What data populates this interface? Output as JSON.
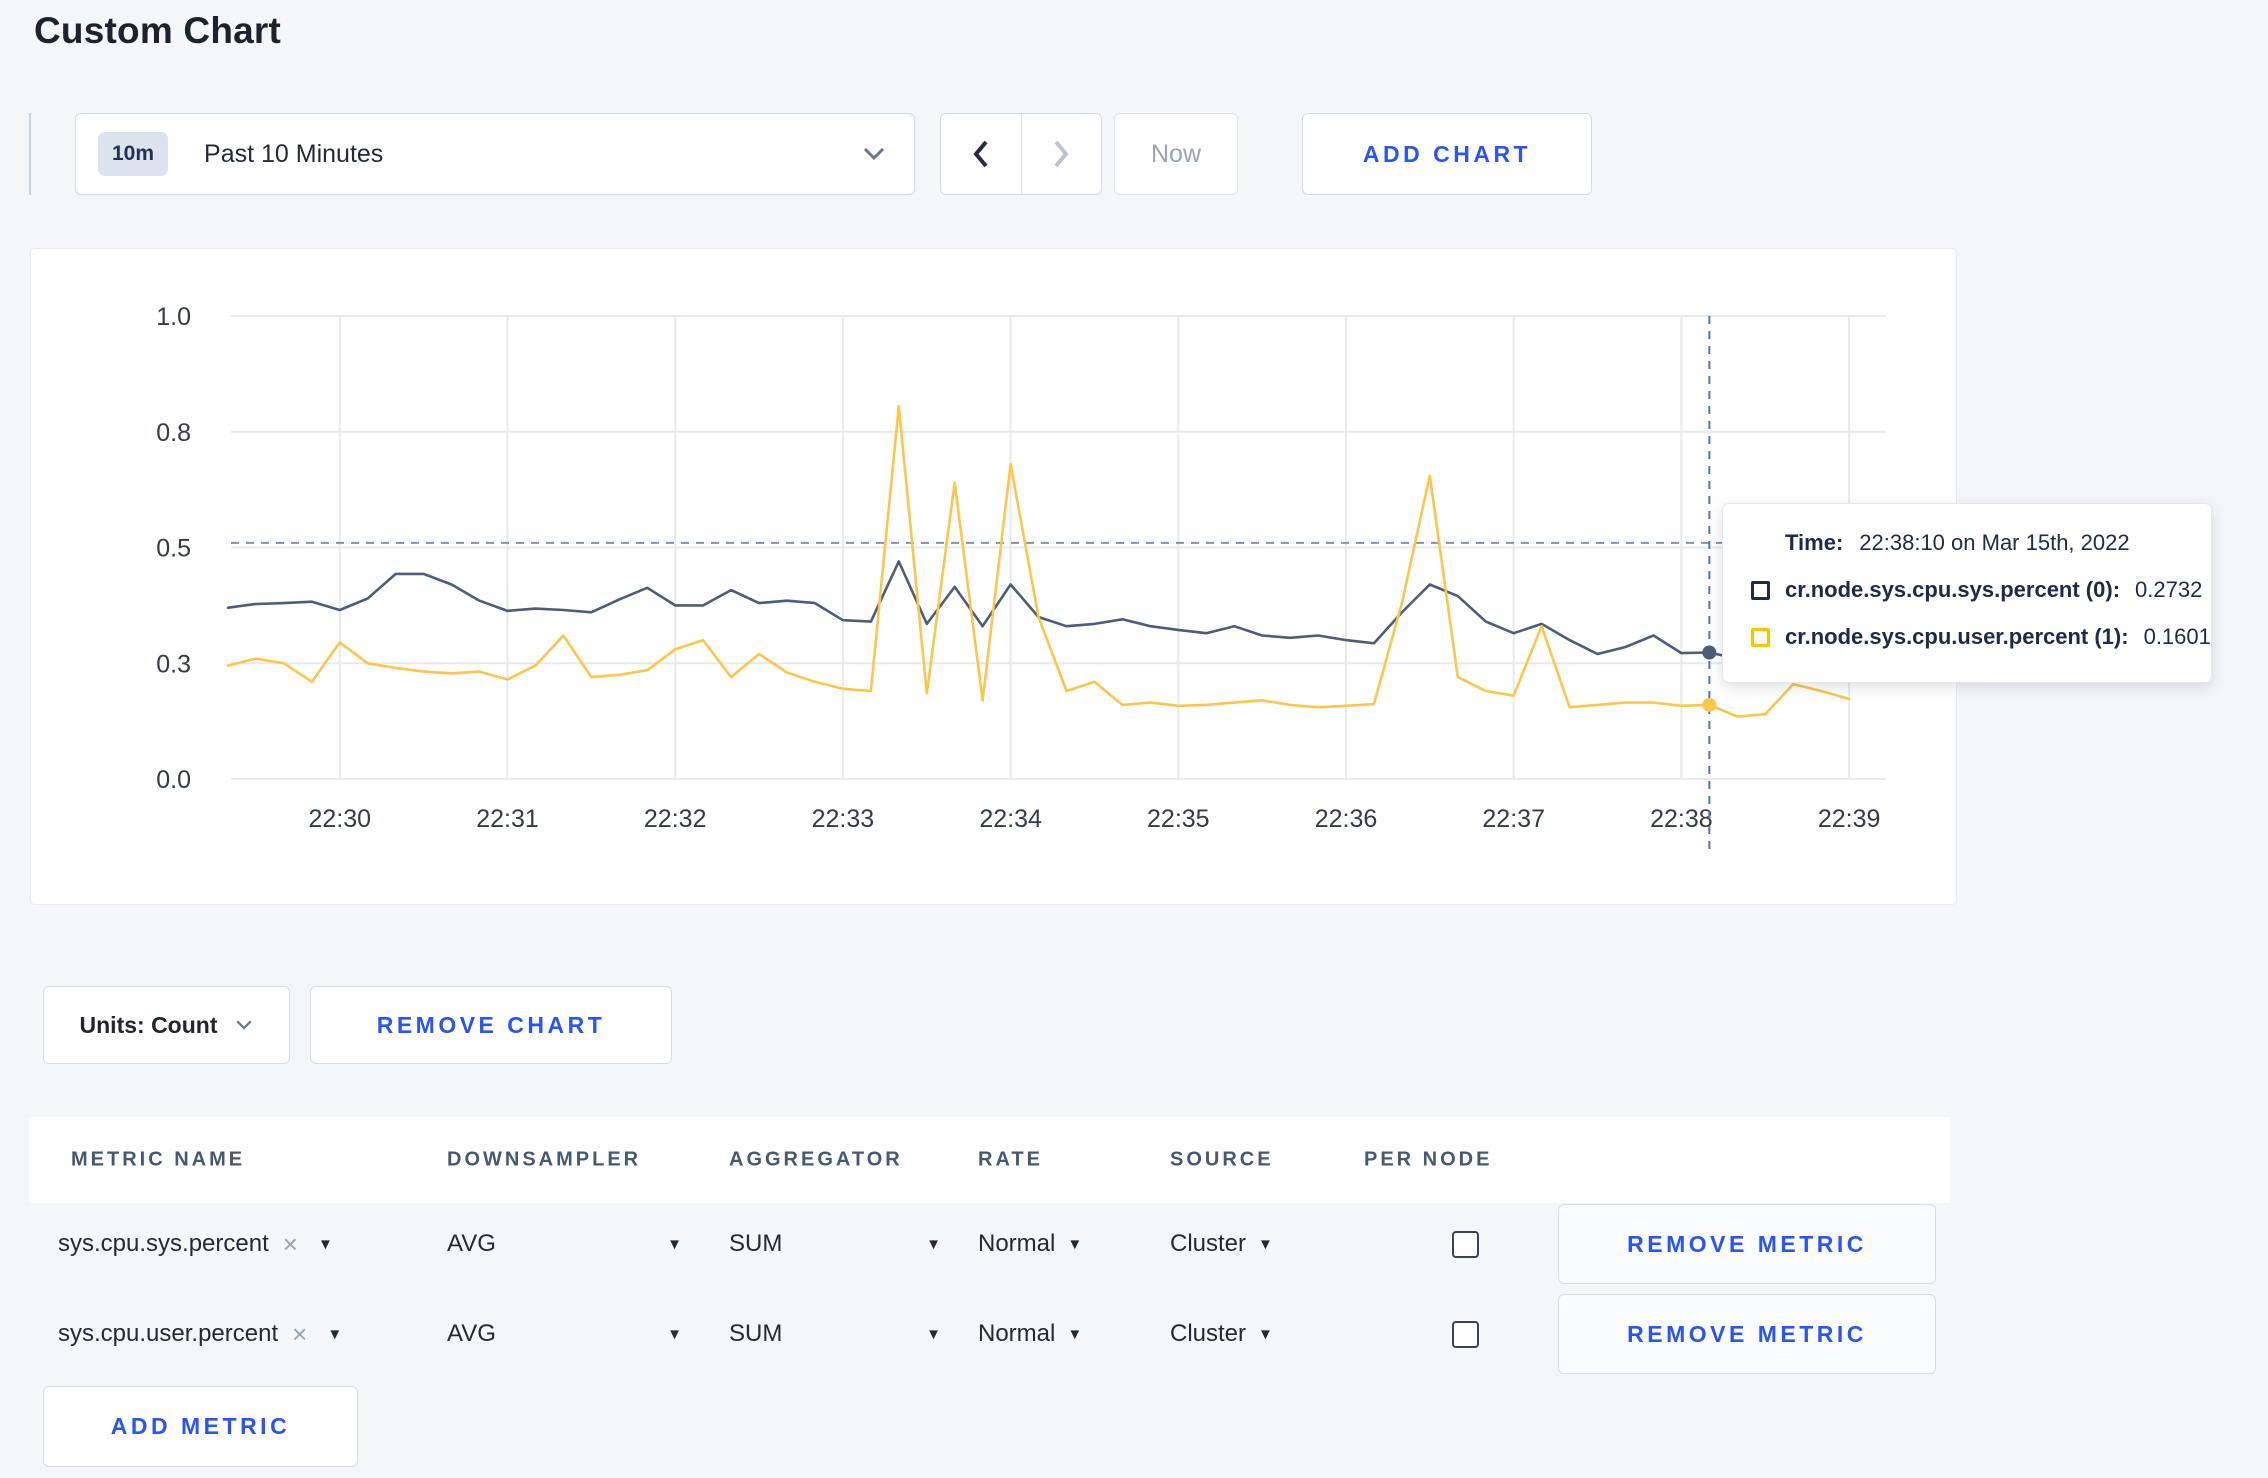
{
  "page": {
    "title": "Custom Chart"
  },
  "toolbar": {
    "time_window_badge": "10m",
    "time_window_label": "Past 10 Minutes",
    "now_label": "Now",
    "add_chart_label": "ADD CHART"
  },
  "chart_data": {
    "type": "line",
    "title": "",
    "xlabel": "",
    "ylabel": "",
    "ylim": [
      0,
      1
    ],
    "grid": true,
    "y_ticks": [
      {
        "value": 0.0,
        "label": "0.0"
      },
      {
        "value": 0.25,
        "label": "0.3"
      },
      {
        "value": 0.5,
        "label": "0.5"
      },
      {
        "value": 0.75,
        "label": "0.8"
      },
      {
        "value": 1.0,
        "label": "1.0"
      }
    ],
    "x_tick_labels": [
      "22:30",
      "22:31",
      "22:32",
      "22:33",
      "22:34",
      "22:35",
      "22:36",
      "22:37",
      "22:38",
      "22:39"
    ],
    "x_tick_indices": [
      4,
      10,
      16,
      22,
      28,
      34,
      40,
      46,
      52,
      58
    ],
    "point_interval_seconds": 10,
    "start_time": "22:29:20",
    "series": [
      {
        "name": "cr.node.sys.cpu.sys.percent",
        "color": "#4d5c7a",
        "values": [
          0.37,
          0.378,
          0.38,
          0.383,
          0.365,
          0.39,
          0.443,
          0.443,
          0.42,
          0.385,
          0.363,
          0.368,
          0.365,
          0.36,
          0.388,
          0.413,
          0.375,
          0.375,
          0.408,
          0.38,
          0.385,
          0.38,
          0.343,
          0.34,
          0.47,
          0.335,
          0.415,
          0.33,
          0.42,
          0.35,
          0.33,
          0.335,
          0.345,
          0.33,
          0.322,
          0.315,
          0.33,
          0.31,
          0.305,
          0.31,
          0.3,
          0.293,
          0.36,
          0.42,
          0.395,
          0.34,
          0.315,
          0.335,
          0.3,
          0.27,
          0.285,
          0.31,
          0.272,
          0.2732,
          0.26,
          0.265,
          0.27,
          0.265,
          0.27
        ]
      },
      {
        "name": "cr.node.sys.cpu.user.percent",
        "color": "#fdc64a",
        "values": [
          0.245,
          0.26,
          0.25,
          0.21,
          0.295,
          0.25,
          0.24,
          0.232,
          0.228,
          0.232,
          0.215,
          0.245,
          0.31,
          0.22,
          0.225,
          0.235,
          0.28,
          0.3,
          0.22,
          0.27,
          0.23,
          0.21,
          0.195,
          0.19,
          0.805,
          0.185,
          0.64,
          0.17,
          0.68,
          0.35,
          0.19,
          0.21,
          0.16,
          0.165,
          0.158,
          0.16,
          0.165,
          0.17,
          0.16,
          0.155,
          0.158,
          0.162,
          0.38,
          0.655,
          0.22,
          0.19,
          0.18,
          0.33,
          0.155,
          0.16,
          0.165,
          0.165,
          0.158,
          0.1601,
          0.135,
          0.14,
          0.205,
          0.19,
          0.173
        ]
      }
    ],
    "crosshair": {
      "index": 53,
      "h_value": 0.51
    },
    "legend_position": "tooltip"
  },
  "tooltip": {
    "time_label": "Time:",
    "time_value": "22:38:10 on Mar 15th, 2022",
    "series": [
      {
        "name": "cr.node.sys.cpu.sys.percent (0):",
        "value": "0.2732",
        "swatch_color": "#1f2a48"
      },
      {
        "name": "cr.node.sys.cpu.user.percent (1):",
        "value": "0.1601",
        "swatch_color": "#ffc107"
      }
    ]
  },
  "chart_footer": {
    "units_label": "Units: Count",
    "remove_chart_label": "REMOVE CHART"
  },
  "metrics_table": {
    "headers": [
      "METRIC NAME",
      "DOWNSAMPLER",
      "AGGREGATOR",
      "RATE",
      "SOURCE",
      "PER NODE"
    ],
    "rows": [
      {
        "metric": "sys.cpu.sys.percent",
        "downsampler": "AVG",
        "aggregator": "SUM",
        "rate": "Normal",
        "source": "Cluster",
        "per_node_checked": false,
        "remove_label": "REMOVE METRIC"
      },
      {
        "metric": "sys.cpu.user.percent",
        "downsampler": "AVG",
        "aggregator": "SUM",
        "rate": "Normal",
        "source": "Cluster",
        "per_node_checked": false,
        "remove_label": "REMOVE METRIC"
      }
    ],
    "add_metric_label": "ADD METRIC",
    "close_glyph": "×",
    "caret_glyph": "▼"
  }
}
